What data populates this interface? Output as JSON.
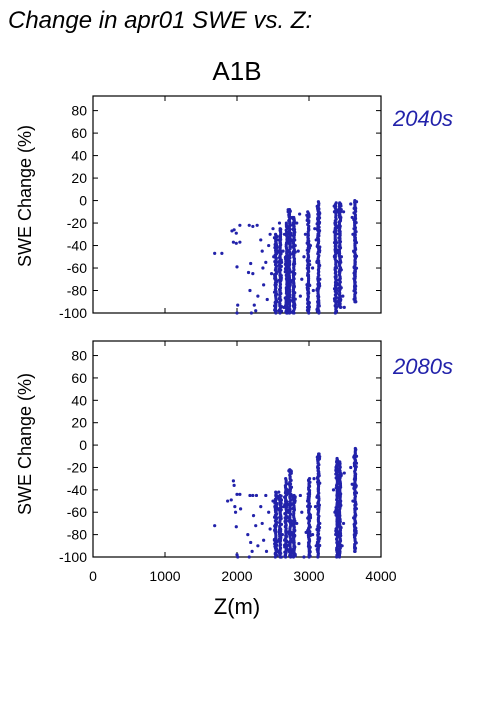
{
  "page_title": "Change in apr01 SWE vs. Z:",
  "scenario": "A1B",
  "colors": {
    "points": "#2222aa",
    "period_label": "#2222aa",
    "axis": "#000000"
  },
  "chart_data": [
    {
      "type": "scatter",
      "period": "2040s",
      "xlabel": "",
      "ylabel": "SWE Change (%)",
      "xlim": [
        0,
        4000
      ],
      "ylim": [
        -100,
        93
      ],
      "xticks": [
        0,
        1000,
        2000,
        3000,
        4000
      ],
      "yticks": [
        80,
        60,
        40,
        20,
        0,
        -20,
        -40,
        -60,
        -80,
        -100
      ],
      "xtick_labels_shown": false,
      "grid": false,
      "points": [
        [
          1690,
          -47
        ],
        [
          1790,
          -47
        ],
        [
          1930,
          -27
        ],
        [
          1960,
          -26
        ],
        [
          1990,
          -29
        ],
        [
          2040,
          -22
        ],
        [
          1950,
          -37
        ],
        [
          1990,
          -38
        ],
        [
          2040,
          -37
        ],
        [
          2000,
          -59
        ],
        [
          2010,
          -93
        ],
        [
          2000,
          -100
        ],
        [
          2170,
          -22
        ],
        [
          2220,
          -23
        ],
        [
          2280,
          -22
        ],
        [
          2160,
          -64
        ],
        [
          2180,
          -80
        ],
        [
          2190,
          -56
        ],
        [
          2220,
          -65
        ],
        [
          2240,
          -93
        ],
        [
          2200,
          -100
        ],
        [
          2260,
          -98
        ],
        [
          2290,
          -85
        ],
        [
          2330,
          -35
        ],
        [
          2350,
          -45
        ],
        [
          2360,
          -60
        ],
        [
          2370,
          -75
        ],
        [
          2400,
          -55
        ],
        [
          2420,
          -88
        ],
        [
          2440,
          -40
        ],
        [
          2460,
          -30
        ],
        [
          2480,
          -65
        ],
        [
          2500,
          -25
        ],
        [
          2510,
          -50
        ],
        [
          2530,
          -70
        ],
        [
          2550,
          -90
        ],
        [
          2570,
          -35
        ],
        [
          2590,
          -20
        ],
        [
          2600,
          -80
        ],
        [
          2620,
          -55
        ],
        [
          2640,
          -45
        ],
        [
          2650,
          -95
        ],
        [
          2660,
          -30
        ],
        [
          2680,
          -60
        ],
        [
          2710,
          -10
        ],
        [
          2720,
          -28
        ],
        [
          2730,
          -55
        ],
        [
          2740,
          -75
        ],
        [
          2760,
          -35
        ],
        [
          2770,
          -15
        ],
        [
          2780,
          -90
        ],
        [
          2800,
          -65
        ],
        [
          2830,
          -20
        ],
        [
          2850,
          -45
        ],
        [
          2870,
          -12
        ],
        [
          2880,
          -85
        ],
        [
          2900,
          -70
        ],
        [
          2930,
          -50
        ],
        [
          2950,
          -30
        ],
        [
          2980,
          -95
        ],
        [
          3000,
          -13
        ],
        [
          3020,
          -40
        ],
        [
          3050,
          -60
        ],
        [
          3060,
          -80
        ],
        [
          3080,
          -25
        ],
        [
          3100,
          -35
        ],
        [
          3110,
          -55
        ],
        [
          3120,
          -90
        ],
        [
          3130,
          -20
        ],
        [
          3140,
          -10
        ],
        [
          3150,
          -70
        ],
        [
          3350,
          -5
        ],
        [
          3360,
          -20
        ],
        [
          3370,
          -40
        ],
        [
          3380,
          -60
        ],
        [
          3390,
          -75
        ],
        [
          3400,
          -90
        ],
        [
          3420,
          -30
        ],
        [
          3450,
          -50
        ],
        [
          3470,
          -85
        ],
        [
          3480,
          -10
        ],
        [
          3490,
          -95
        ],
        [
          3580,
          -3
        ],
        [
          3600,
          -15
        ],
        [
          3610,
          -30
        ],
        [
          3620,
          -45
        ],
        [
          3630,
          -60
        ],
        [
          3640,
          -75
        ],
        [
          3650,
          -90
        ],
        [
          3660,
          -1
        ]
      ],
      "columns": [
        {
          "x": 2540,
          "ymin": -100,
          "ymax": -30
        },
        {
          "x": 2600,
          "ymin": -100,
          "ymax": -25
        },
        {
          "x": 2690,
          "ymin": -100,
          "ymax": -20
        },
        {
          "x": 2730,
          "ymin": -100,
          "ymax": -8
        },
        {
          "x": 2790,
          "ymin": -100,
          "ymax": -15
        },
        {
          "x": 2990,
          "ymin": -100,
          "ymax": -10
        },
        {
          "x": 3130,
          "ymin": -100,
          "ymax": -1
        },
        {
          "x": 3370,
          "ymin": -100,
          "ymax": -2
        },
        {
          "x": 3430,
          "ymin": -95,
          "ymax": -2
        },
        {
          "x": 3640,
          "ymin": -90,
          "ymax": 0
        }
      ]
    },
    {
      "type": "scatter",
      "period": "2080s",
      "xlabel": "Z(m)",
      "ylabel": "SWE Change (%)",
      "xlim": [
        0,
        4000
      ],
      "ylim": [
        -100,
        93
      ],
      "xticks": [
        0,
        1000,
        2000,
        3000,
        4000
      ],
      "yticks": [
        80,
        60,
        40,
        20,
        0,
        -20,
        -40,
        -60,
        -80,
        -100
      ],
      "xtick_labels_shown": true,
      "grid": false,
      "points": [
        [
          1690,
          -72
        ],
        [
          1870,
          -50
        ],
        [
          1920,
          -49
        ],
        [
          1950,
          -32
        ],
        [
          1960,
          -36
        ],
        [
          1970,
          -55
        ],
        [
          1980,
          -60
        ],
        [
          2000,
          -44
        ],
        [
          2040,
          -44
        ],
        [
          1990,
          -73
        ],
        [
          2050,
          -57
        ],
        [
          2000,
          -98
        ],
        [
          2010,
          -100
        ],
        [
          2180,
          -45
        ],
        [
          2220,
          -45
        ],
        [
          2270,
          -45
        ],
        [
          2230,
          -63
        ],
        [
          2150,
          -80
        ],
        [
          2190,
          -87
        ],
        [
          2210,
          -95
        ],
        [
          2260,
          -72
        ],
        [
          2170,
          -100
        ],
        [
          2290,
          -90
        ],
        [
          2330,
          -55
        ],
        [
          2350,
          -70
        ],
        [
          2370,
          -85
        ],
        [
          2400,
          -45
        ],
        [
          2410,
          -95
        ],
        [
          2440,
          -60
        ],
        [
          2460,
          -75
        ],
        [
          2500,
          -50
        ],
        [
          2520,
          -85
        ],
        [
          2550,
          -65
        ],
        [
          2580,
          -42
        ],
        [
          2600,
          -100
        ],
        [
          2630,
          -80
        ],
        [
          2650,
          -55
        ],
        [
          2670,
          -90
        ],
        [
          2700,
          -40
        ],
        [
          2720,
          -60
        ],
        [
          2740,
          -25
        ],
        [
          2760,
          -80
        ],
        [
          2780,
          -95
        ],
        [
          2800,
          -48
        ],
        [
          2830,
          -70
        ],
        [
          2860,
          -88
        ],
        [
          2880,
          -45
        ],
        [
          2900,
          -60
        ],
        [
          2930,
          -100
        ],
        [
          2960,
          -78
        ],
        [
          2980,
          -50
        ],
        [
          3000,
          -45
        ],
        [
          3020,
          -65
        ],
        [
          3050,
          -80
        ],
        [
          3070,
          -30
        ],
        [
          3090,
          -55
        ],
        [
          3100,
          -90
        ],
        [
          3120,
          -20
        ],
        [
          3130,
          -40
        ],
        [
          3140,
          -8
        ],
        [
          3150,
          -70
        ],
        [
          3340,
          -40
        ],
        [
          3360,
          -60
        ],
        [
          3380,
          -80
        ],
        [
          3400,
          -15
        ],
        [
          3420,
          -30
        ],
        [
          3440,
          -50
        ],
        [
          3460,
          -90
        ],
        [
          3480,
          -70
        ],
        [
          3490,
          -25
        ],
        [
          3580,
          -20
        ],
        [
          3600,
          -35
        ],
        [
          3610,
          -50
        ],
        [
          3620,
          -65
        ],
        [
          3630,
          -80
        ],
        [
          3640,
          -95
        ],
        [
          3650,
          -4
        ],
        [
          3660,
          -10
        ]
      ],
      "columns": [
        {
          "x": 2540,
          "ymin": -100,
          "ymax": -42
        },
        {
          "x": 2600,
          "ymin": -100,
          "ymax": -45
        },
        {
          "x": 2680,
          "ymin": -100,
          "ymax": -30
        },
        {
          "x": 2740,
          "ymin": -100,
          "ymax": -22
        },
        {
          "x": 2790,
          "ymin": -100,
          "ymax": -45
        },
        {
          "x": 3000,
          "ymin": -100,
          "ymax": -30
        },
        {
          "x": 3130,
          "ymin": -100,
          "ymax": -8
        },
        {
          "x": 3390,
          "ymin": -100,
          "ymax": -12
        },
        {
          "x": 3430,
          "ymin": -100,
          "ymax": -15
        },
        {
          "x": 3640,
          "ymin": -95,
          "ymax": -3
        }
      ]
    }
  ]
}
